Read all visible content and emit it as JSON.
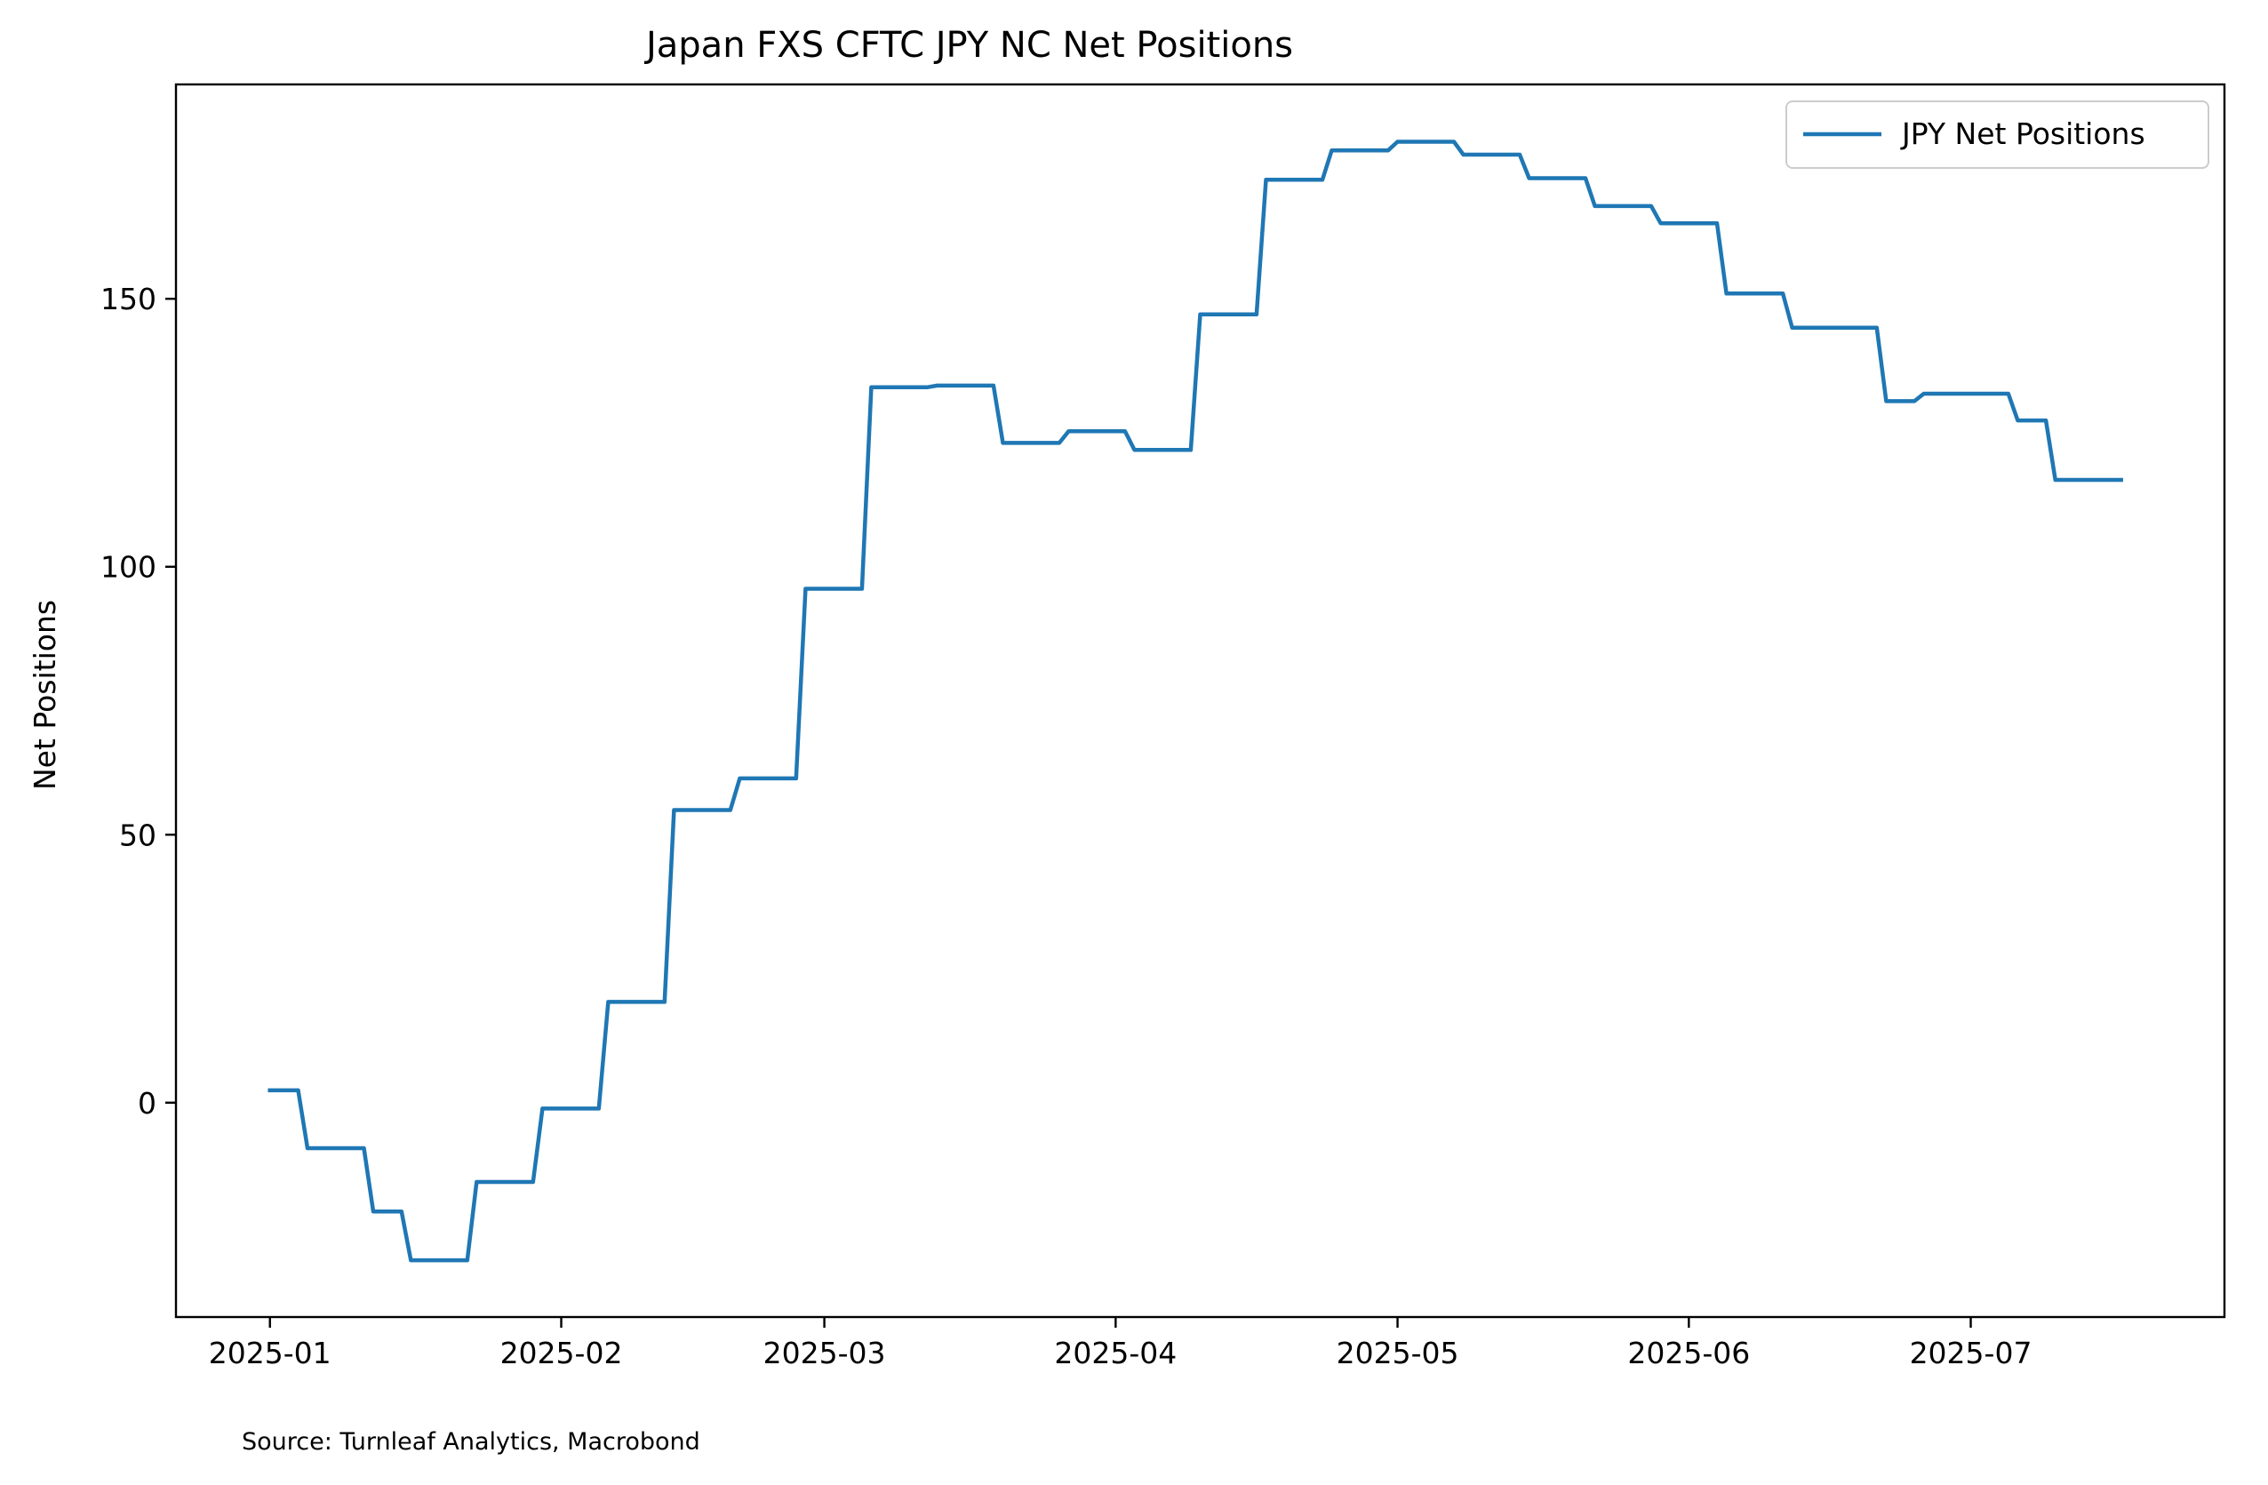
{
  "chart_data": {
    "type": "line",
    "title": "Japan FXS CFTC JPY NC Net Positions",
    "xlabel": "",
    "ylabel": "Net Positions",
    "xlim": [
      "2024-12-22",
      "2025-07-28"
    ],
    "ylim": [
      -40,
      190
    ],
    "x_ticks": [
      "2025-01",
      "2025-02",
      "2025-03",
      "2025-04",
      "2025-05",
      "2025-06",
      "2025-07"
    ],
    "y_ticks": [
      0,
      50,
      100,
      150
    ],
    "grid": false,
    "legend": {
      "position": "top-right"
    },
    "series": [
      {
        "name": "JPY Net Positions",
        "color": "#1f77b4",
        "x": [
          "2025-01-01",
          "2025-01-04",
          "2025-01-05",
          "2025-01-11",
          "2025-01-12",
          "2025-01-15",
          "2025-01-16",
          "2025-01-22",
          "2025-01-23",
          "2025-01-29",
          "2025-01-30",
          "2025-02-05",
          "2025-02-06",
          "2025-02-12",
          "2025-02-13",
          "2025-02-19",
          "2025-02-20",
          "2025-02-26",
          "2025-02-27",
          "2025-03-05",
          "2025-03-06",
          "2025-03-12",
          "2025-03-13",
          "2025-03-19",
          "2025-03-20",
          "2025-03-26",
          "2025-03-27",
          "2025-04-02",
          "2025-04-03",
          "2025-04-09",
          "2025-04-10",
          "2025-04-16",
          "2025-04-17",
          "2025-04-23",
          "2025-04-24",
          "2025-04-30",
          "2025-05-01",
          "2025-05-07",
          "2025-05-08",
          "2025-05-14",
          "2025-05-15",
          "2025-05-21",
          "2025-05-22",
          "2025-05-28",
          "2025-05-29",
          "2025-06-04",
          "2025-06-05",
          "2025-06-11",
          "2025-06-12",
          "2025-06-21",
          "2025-06-22",
          "2025-06-25",
          "2025-06-26",
          "2025-07-05",
          "2025-07-06",
          "2025-07-09",
          "2025-07-10",
          "2025-07-17"
        ],
        "y": [
          2.3,
          2.3,
          -8.5,
          -8.5,
          -20.3,
          -20.3,
          -29.4,
          -29.4,
          -14.8,
          -14.8,
          -1.1,
          -1.1,
          18.8,
          18.8,
          54.6,
          54.6,
          60.5,
          60.5,
          95.9,
          95.9,
          133.5,
          133.5,
          133.8,
          133.8,
          123.1,
          123.1,
          125.3,
          125.3,
          121.8,
          121.8,
          147.1,
          147.1,
          172.2,
          172.2,
          177.7,
          177.7,
          179.3,
          179.3,
          176.9,
          176.9,
          172.5,
          172.5,
          167.3,
          167.3,
          164.1,
          164.1,
          151.0,
          151.0,
          144.6,
          144.6,
          130.9,
          130.9,
          132.3,
          132.3,
          127.3,
          127.3,
          116.2,
          116.2
        ]
      }
    ]
  },
  "source_note": "Source: Turnleaf Analytics, Macrobond"
}
